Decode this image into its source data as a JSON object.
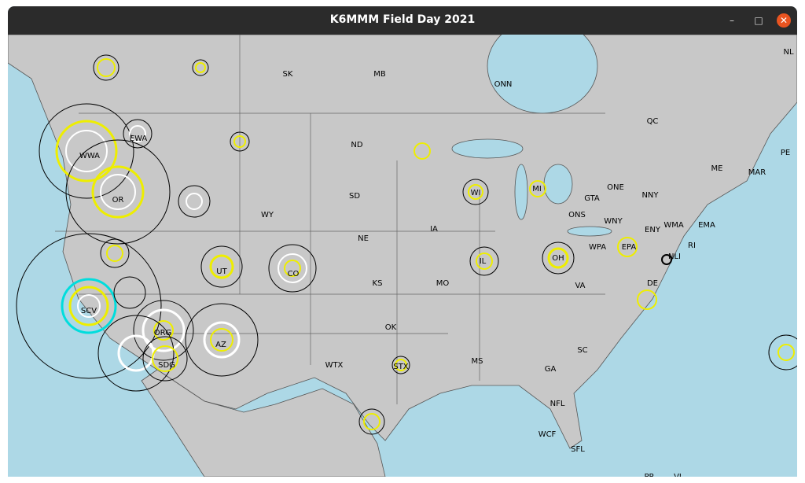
{
  "window": {
    "title": "K6MMM Field Day 2021"
  },
  "map": {
    "labels": [
      "SK",
      "MB",
      "ONN",
      "NL",
      "QC",
      "PE",
      "MAR",
      "ND",
      "WWA",
      "EWA",
      "OR",
      "WY",
      "SD",
      "NE",
      "IA",
      "WI",
      "MI",
      "GTA",
      "ONE",
      "ONS",
      "WNY",
      "NNY",
      "ENY",
      "WMA",
      "EMA",
      "RI",
      "NLI",
      "ME",
      "WPA",
      "EPA",
      "OH",
      "IL",
      "UT",
      "CO",
      "KS",
      "MO",
      "SCV",
      "DE",
      "VA",
      "SC",
      "OK",
      "AZ",
      "ORG",
      "SDG",
      "WTX",
      "STX",
      "MS",
      "GA",
      "NFL",
      "WCF",
      "SFL",
      "PR",
      "VI"
    ]
  }
}
